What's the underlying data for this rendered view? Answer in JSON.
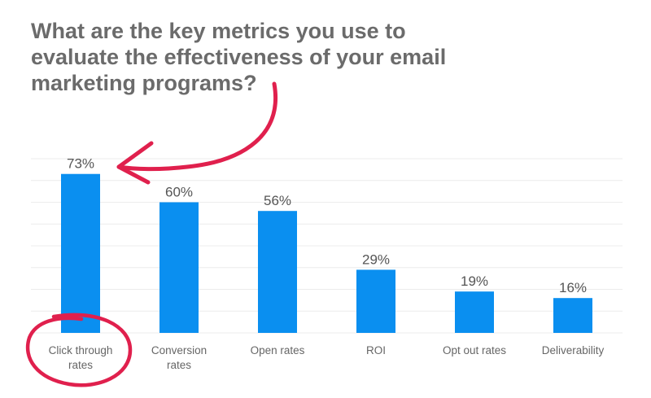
{
  "chart_data": {
    "type": "bar",
    "title": "What are the key metrics you use to evaluate the effectiveness of your email marketing programs?",
    "categories": [
      "Click through rates",
      "Conversion rates",
      "Open rates",
      "ROI",
      "Opt out rates",
      "Deliverability"
    ],
    "category_lines": [
      [
        "Click through",
        "rates"
      ],
      [
        "Conversion",
        "rates"
      ],
      [
        "Open rates"
      ],
      [
        "ROI"
      ],
      [
        "Opt out rates"
      ],
      [
        "Deliverability"
      ]
    ],
    "values": [
      73,
      60,
      56,
      29,
      19,
      16
    ],
    "data_labels": [
      "73%",
      "60%",
      "56%",
      "29%",
      "19%",
      "16%"
    ],
    "unit": "%",
    "ylim": [
      0,
      80
    ],
    "grid": true,
    "gridline_step": 10,
    "bar_color": "#0a8ff0",
    "annotation_color": "#e0204d",
    "annotations": [
      "arrow pointing to Click through rates bar",
      "circle around Click through rates label"
    ]
  }
}
